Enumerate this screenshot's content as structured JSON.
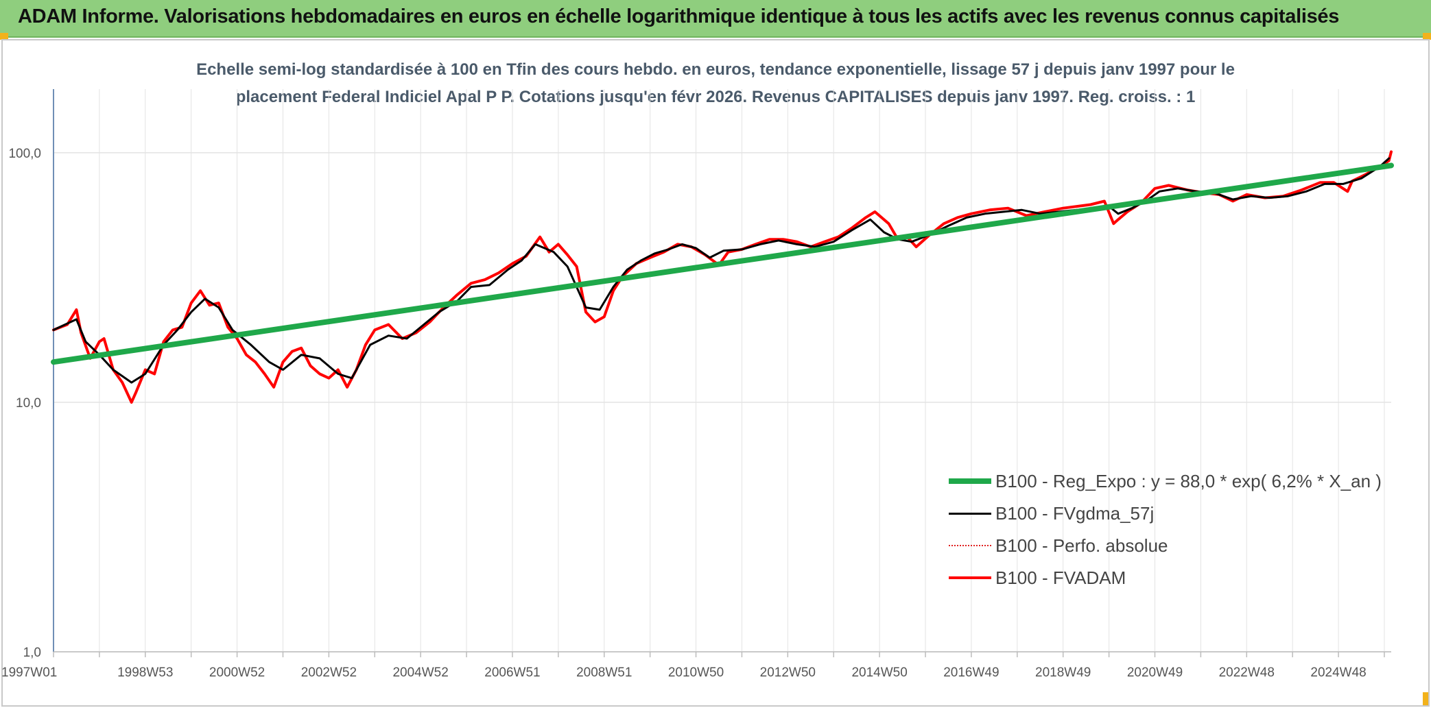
{
  "title": "ADAM Informe. Valorisations hebdomadaires en euros en échelle logarithmique identique à tous les actifs avec les revenus connus capitalisés",
  "subtitle_line1": "Echelle semi-log standardisée à 100 en Tfin des cours hebdo. en euros, tendance exponentielle, lissage 57 j depuis janv 1997 pour le",
  "subtitle_line2": "placement Federal Indiciel Apal P P. Cotations jusqu'en févr 2026. Revenus CAPITALISES depuis janv 1997. Reg. croiss. : 1",
  "colors": {
    "banner": "#8fce7e",
    "accent": "#f2b21b",
    "reg": "#1fa84a",
    "smooth": "#000000",
    "perfo": "#e02020",
    "fvadam": "#ff0000"
  },
  "chart_data": {
    "type": "line",
    "yscale": "log",
    "ylim": [
      1,
      180
    ],
    "yticks": [
      1,
      10,
      100
    ],
    "ytick_labels": [
      "1,0",
      "10,0",
      "100,0"
    ],
    "xlim": [
      1997.0,
      2026.15
    ],
    "xtick_labels": [
      "1997W01",
      "1998W53",
      "2000W52",
      "2002W52",
      "2004W52",
      "2006W51",
      "2008W51",
      "2010W50",
      "2012W50",
      "2014W50",
      "2016W49",
      "2018W49",
      "2020W49",
      "2022W48",
      "2024W48"
    ],
    "xtick_values": [
      1997.0,
      1999.0,
      2001.0,
      2003.0,
      2005.0,
      2007.0,
      2009.0,
      2011.0,
      2013.0,
      2015.0,
      2017.0,
      2019.0,
      2021.0,
      2023.0,
      2025.0
    ],
    "legend_position": "bottom-right",
    "series": [
      {
        "name": "B100 - Reg_Expo : y = 88,0 * exp( 6,2% *  X_an )",
        "style": "reg",
        "x": [
          1997.0,
          2026.15
        ],
        "y": [
          14.5,
          89.0
        ]
      },
      {
        "name": "B100 - FVgdma_57j",
        "style": "smooth",
        "x": [
          1997.0,
          1997.5,
          1997.7,
          1998.0,
          1998.3,
          1998.7,
          1999.0,
          1999.4,
          1999.7,
          2000.0,
          2000.3,
          2000.6,
          2000.9,
          2001.3,
          2001.7,
          2002.0,
          2002.4,
          2002.8,
          2003.2,
          2003.5,
          2003.9,
          2004.3,
          2004.7,
          2005.0,
          2005.4,
          2005.8,
          2006.1,
          2006.5,
          2006.9,
          2007.2,
          2007.5,
          2007.9,
          2008.2,
          2008.6,
          2008.9,
          2009.2,
          2009.5,
          2009.8,
          2010.1,
          2010.4,
          2010.7,
          2011.0,
          2011.3,
          2011.6,
          2012.0,
          2012.4,
          2012.8,
          2013.2,
          2013.6,
          2014.0,
          2014.4,
          2014.8,
          2015.1,
          2015.4,
          2015.7,
          2016.1,
          2016.5,
          2016.9,
          2017.3,
          2017.7,
          2018.1,
          2018.5,
          2018.9,
          2019.3,
          2019.7,
          2020.0,
          2020.2,
          2020.5,
          2020.8,
          2021.1,
          2021.5,
          2021.9,
          2022.3,
          2022.7,
          2023.1,
          2023.5,
          2023.9,
          2024.3,
          2024.7,
          2025.1,
          2025.5,
          2025.9,
          2026.1
        ],
        "y": [
          19.5,
          21.5,
          17.5,
          15.5,
          13.5,
          12.0,
          13.0,
          17.0,
          19.5,
          23.0,
          26.0,
          24.0,
          19.5,
          17.0,
          14.5,
          13.5,
          15.5,
          15.0,
          13.0,
          12.5,
          17.0,
          18.5,
          18.0,
          20.0,
          23.0,
          25.5,
          29.0,
          29.5,
          34.0,
          37.0,
          43.0,
          40.0,
          35.0,
          24.0,
          23.5,
          29.0,
          34.0,
          37.0,
          39.5,
          41.0,
          43.0,
          41.5,
          38.0,
          40.5,
          41.0,
          43.0,
          44.5,
          43.0,
          42.0,
          44.0,
          49.0,
          54.0,
          48.0,
          45.0,
          44.0,
          47.0,
          51.0,
          55.0,
          57.0,
          58.0,
          59.0,
          57.0,
          58.0,
          59.0,
          60.0,
          61.0,
          57.0,
          60.0,
          64.0,
          70.0,
          72.0,
          70.0,
          69.0,
          65.0,
          67.0,
          66.0,
          67.0,
          70.0,
          75.0,
          75.0,
          79.0,
          88.0,
          95.0
        ]
      },
      {
        "name": "B100 - Perfo. absolue",
        "style": "perfo",
        "x": [],
        "y": []
      },
      {
        "name": "B100 - FVADAM",
        "style": "fvadam",
        "x": [
          1997.0,
          1997.3,
          1997.5,
          1997.6,
          1997.8,
          1998.0,
          1998.1,
          1998.3,
          1998.5,
          1998.7,
          1998.8,
          1999.0,
          1999.2,
          1999.4,
          1999.6,
          1999.8,
          2000.0,
          2000.2,
          2000.4,
          2000.6,
          2000.8,
          2001.0,
          2001.2,
          2001.4,
          2001.6,
          2001.8,
          2002.0,
          2002.2,
          2002.4,
          2002.6,
          2002.8,
          2003.0,
          2003.2,
          2003.4,
          2003.6,
          2003.8,
          2004.0,
          2004.3,
          2004.6,
          2004.9,
          2005.2,
          2005.5,
          2005.8,
          2006.1,
          2006.4,
          2006.7,
          2007.0,
          2007.3,
          2007.6,
          2007.8,
          2008.0,
          2008.2,
          2008.4,
          2008.6,
          2008.8,
          2009.0,
          2009.2,
          2009.4,
          2009.7,
          2010.0,
          2010.3,
          2010.6,
          2010.9,
          2011.2,
          2011.5,
          2011.7,
          2012.0,
          2012.3,
          2012.6,
          2012.9,
          2013.2,
          2013.5,
          2013.8,
          2014.1,
          2014.4,
          2014.7,
          2014.9,
          2015.2,
          2015.4,
          2015.6,
          2015.8,
          2016.1,
          2016.4,
          2016.7,
          2017.0,
          2017.4,
          2017.8,
          2018.2,
          2018.6,
          2019.0,
          2019.3,
          2019.6,
          2019.9,
          2020.1,
          2020.2,
          2020.4,
          2020.7,
          2021.0,
          2021.3,
          2021.7,
          2022.1,
          2022.4,
          2022.7,
          2023.0,
          2023.4,
          2023.8,
          2024.2,
          2024.6,
          2024.9,
          2025.2,
          2025.3,
          2025.6,
          2025.9,
          2026.1,
          2026.15
        ],
        "y": [
          19.5,
          20.5,
          23.5,
          19.0,
          15.0,
          17.5,
          18.0,
          13.5,
          12.0,
          10.0,
          11.0,
          13.5,
          13.0,
          17.5,
          19.5,
          20.0,
          25.0,
          28.0,
          24.5,
          25.0,
          20.0,
          18.0,
          15.5,
          14.5,
          13.0,
          11.5,
          14.5,
          16.0,
          16.5,
          14.0,
          13.0,
          12.5,
          13.5,
          11.5,
          13.5,
          17.0,
          19.5,
          20.5,
          18.0,
          19.0,
          21.0,
          24.0,
          27.0,
          30.0,
          31.0,
          33.0,
          36.0,
          38.5,
          46.0,
          40.0,
          43.0,
          39.0,
          35.0,
          23.0,
          21.0,
          22.0,
          28.0,
          32.0,
          36.0,
          38.0,
          40.0,
          43.0,
          42.0,
          39.0,
          35.5,
          40.0,
          41.0,
          43.0,
          45.0,
          45.0,
          44.0,
          42.0,
          44.0,
          46.0,
          50.0,
          55.0,
          58.0,
          52.0,
          45.0,
          46.0,
          42.0,
          47.0,
          52.0,
          55.0,
          57.0,
          59.0,
          60.0,
          56.0,
          58.0,
          60.0,
          61.0,
          62.0,
          64.0,
          52.0,
          54.0,
          58.0,
          63.0,
          72.0,
          74.0,
          71.0,
          69.0,
          68.0,
          64.0,
          68.0,
          66.0,
          67.0,
          71.0,
          76.0,
          76.0,
          70.0,
          77.0,
          82.0,
          88.0,
          93.0,
          101.0
        ]
      }
    ]
  }
}
